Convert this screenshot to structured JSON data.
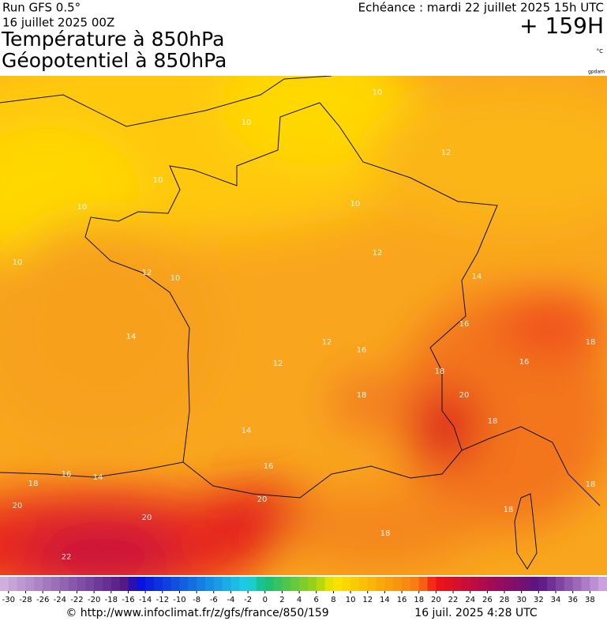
{
  "header": {
    "run": "Run GFS 0.5°",
    "run_date": "16 juillet 2025 00Z",
    "title1": "Température à 850hPa",
    "title2": "Géopotentiel à 850hPa",
    "echeance": "Echéance : mardi 22 juillet 2025 15h UTC",
    "lead": "+ 159H",
    "unit": "°C",
    "credit": "gpdam"
  },
  "map": {
    "contour_labels": [
      10,
      10,
      12,
      10,
      10,
      10,
      10,
      12,
      10,
      12,
      14,
      14,
      16,
      12,
      16,
      18,
      16,
      12,
      18,
      18,
      20,
      18,
      14,
      16,
      18,
      16,
      14,
      20,
      20,
      20,
      18,
      18,
      18,
      22
    ]
  },
  "colorbar": {
    "lim": [
      -31,
      40
    ],
    "ticks": [
      -30,
      -28,
      -26,
      -24,
      -22,
      -20,
      -18,
      -16,
      -14,
      -12,
      -10,
      -8,
      -6,
      -4,
      -2,
      0,
      2,
      4,
      6,
      8,
      10,
      12,
      14,
      16,
      18,
      20,
      22,
      24,
      26,
      28,
      30,
      32,
      34,
      36,
      38
    ]
  },
  "footer": {
    "url": "© http://www.infoclimat.fr/z/gfs/france/850/159",
    "generated": "16 juil. 2025  4:28 UTC"
  }
}
